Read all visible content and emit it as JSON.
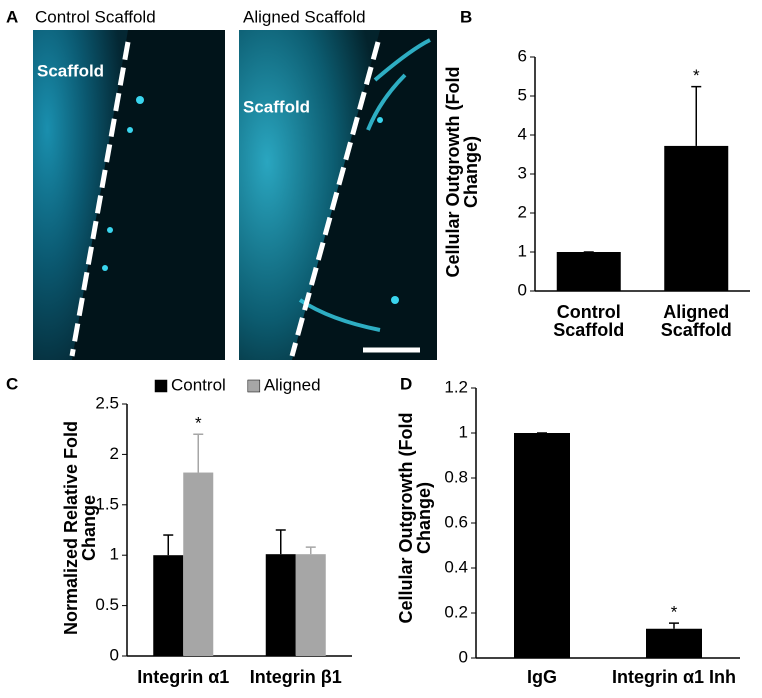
{
  "images": {
    "panel": "A",
    "titles": [
      "Control Scaffold",
      "Aligned Scaffold"
    ],
    "labels": [
      "Scaffold",
      "Scaffold"
    ]
  },
  "chart_data": [
    {
      "type": "bar",
      "panel": "B",
      "y_label": "Cellular Outgrowth (Fold Change)",
      "categories": [
        "Control Scaffold",
        "Aligned Scaffold"
      ],
      "series": [
        {
          "color": "#000000",
          "values": [
            1,
            3.72
          ],
          "errors": [
            0,
            1.52
          ],
          "significance": [
            null,
            "*"
          ]
        }
      ],
      "ylim": [
        0,
        6
      ],
      "yticks": [
        0,
        1,
        2,
        3,
        4,
        5,
        6
      ]
    },
    {
      "type": "bar",
      "panel": "C",
      "y_label": "Normalized Relative Fold Change",
      "legend": "top",
      "categories": [
        "Integrin α1",
        "Integrin β1"
      ],
      "series": [
        {
          "name": "Control",
          "color": "#000000",
          "values": [
            1,
            1.01
          ],
          "errors": [
            0.2,
            0.24
          ]
        },
        {
          "name": "Aligned",
          "color": "#a6a6a6",
          "values": [
            1.82,
            1.01
          ],
          "errors": [
            0.38,
            0.07
          ],
          "significance": [
            "*",
            null
          ]
        }
      ],
      "ylim": [
        0,
        2.5
      ],
      "yticks": [
        0,
        0.5,
        1,
        1.5,
        2,
        2.5
      ]
    },
    {
      "type": "bar",
      "panel": "D",
      "y_label": "Cellular Outgrowth (Fold Change)",
      "categories": [
        "IgG",
        "Integrin α1 Inh"
      ],
      "series": [
        {
          "color": "#000000",
          "values": [
            1,
            0.13
          ],
          "errors": [
            0,
            0.025
          ],
          "significance": [
            null,
            "*"
          ]
        }
      ],
      "ylim": [
        0,
        1.2
      ],
      "yticks": [
        0,
        0.2,
        0.4,
        0.6,
        0.8,
        1,
        1.2
      ]
    }
  ]
}
